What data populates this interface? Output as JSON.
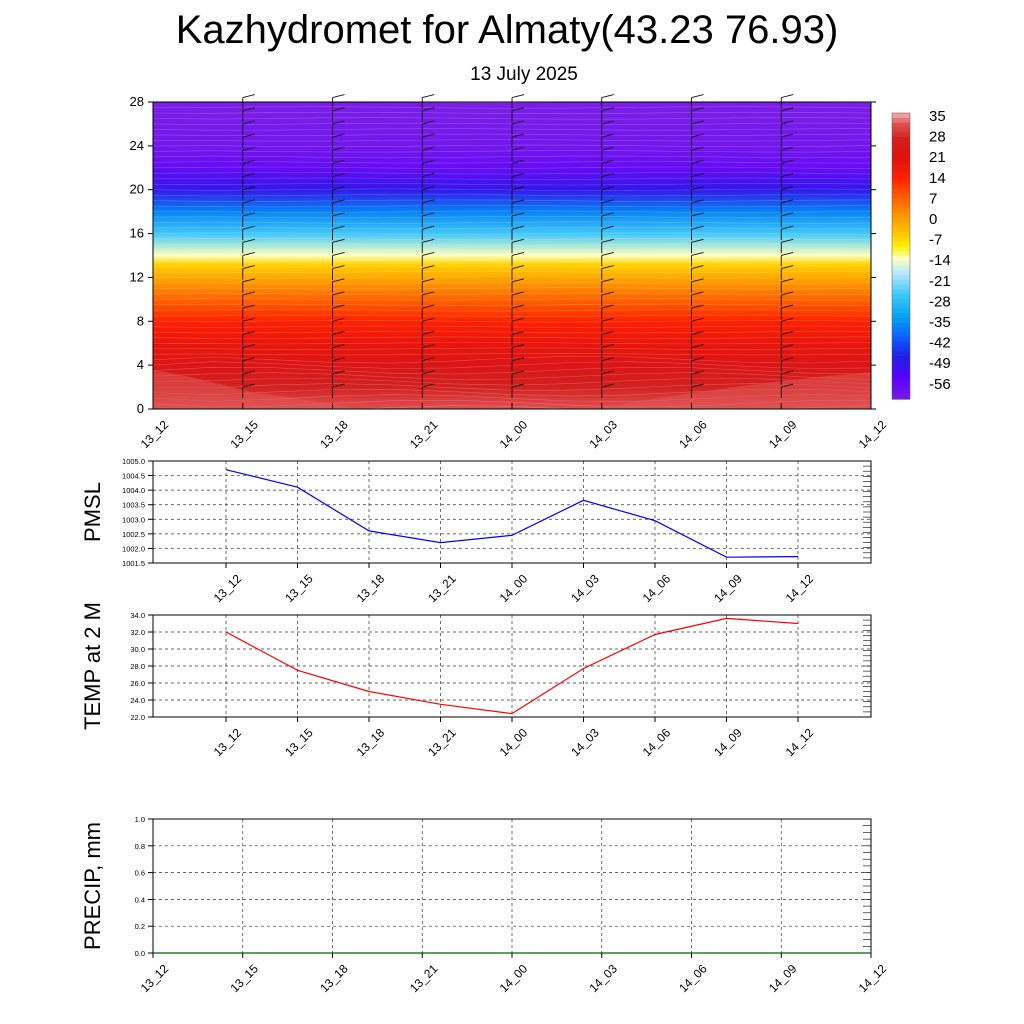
{
  "title": "Kazhydromet for Almaty(43.23 76.93)",
  "subtitle": "13 July 2025",
  "chart_data": [
    {
      "type": "heatmap",
      "title": "",
      "ylim": [
        0,
        28
      ],
      "yticks": [
        "0",
        "4",
        "8",
        "12",
        "16",
        "20",
        "24",
        "28"
      ],
      "x_labels": [
        "13_12",
        "13_15",
        "13_18",
        "13_21",
        "14_00",
        "14_03",
        "14_06",
        "14_09",
        "14_12"
      ],
      "colorbar_labels": [
        "35",
        "28",
        "21",
        "14",
        "7",
        "0",
        "-7",
        "-14",
        "-21",
        "-28",
        "-35",
        "-42",
        "-49",
        "-56"
      ],
      "temperature_profile": [
        {
          "level": 0,
          "value": 33
        },
        {
          "level": 2,
          "value": 28
        },
        {
          "level": 4,
          "value": 24
        },
        {
          "level": 6,
          "value": 20
        },
        {
          "level": 8,
          "value": 15
        },
        {
          "level": 10,
          "value": 8
        },
        {
          "level": 12,
          "value": 0
        },
        {
          "level": 13.2,
          "value": -5
        },
        {
          "level": 14,
          "value": -12
        },
        {
          "level": 16,
          "value": -24
        },
        {
          "level": 18,
          "value": -35
        },
        {
          "level": 20,
          "value": -47
        },
        {
          "level": 22,
          "value": -55
        },
        {
          "level": 24,
          "value": -58
        },
        {
          "level": 28,
          "value": -60
        }
      ],
      "wind_barbs": true
    },
    {
      "type": "line",
      "ylabel": "PMSL",
      "ylim": [
        1001.5,
        1005.0
      ],
      "yticks": [
        "1001.5",
        "1002.0",
        "1002.5",
        "1003.0",
        "1003.5",
        "1004.0",
        "1004.5",
        "1005.0"
      ],
      "categories": [
        "13_12",
        "13_15",
        "13_18",
        "13_21",
        "14_00",
        "14_03",
        "14_06",
        "14_09",
        "14_12"
      ],
      "series": [
        {
          "values": [
            1004.7,
            1004.1,
            1002.6,
            1002.2,
            1002.45,
            1003.65,
            1002.95,
            1001.7,
            1001.72
          ],
          "color": "#0000ff"
        }
      ]
    },
    {
      "type": "line",
      "ylabel": "TEMP at 2 M",
      "ylim": [
        22.0,
        34.0
      ],
      "yticks": [
        "22.0",
        "24.0",
        "26.0",
        "28.0",
        "30.0",
        "32.0",
        "34.0"
      ],
      "categories": [
        "13_12",
        "13_15",
        "13_18",
        "13_21",
        "14_00",
        "14_03",
        "14_06",
        "14_09",
        "14_12"
      ],
      "series": [
        {
          "values": [
            32.0,
            27.5,
            25.0,
            23.5,
            22.4,
            27.7,
            31.7,
            33.6,
            33.0
          ],
          "color": "#ff0000"
        }
      ]
    },
    {
      "type": "line",
      "ylabel": "PRECIP, mm",
      "ylim": [
        0.0,
        1.0
      ],
      "yticks": [
        "0.0",
        "0.2",
        "0.4",
        "0.6",
        "0.8",
        "1.0"
      ],
      "categories": [
        "13_12",
        "13_15",
        "13_18",
        "13_21",
        "14_00",
        "14_03",
        "14_06",
        "14_09",
        "14_12"
      ],
      "series": [
        {
          "values": [
            0,
            0,
            0,
            0,
            0,
            0,
            0,
            0,
            0
          ],
          "color": "#006400"
        }
      ]
    }
  ]
}
